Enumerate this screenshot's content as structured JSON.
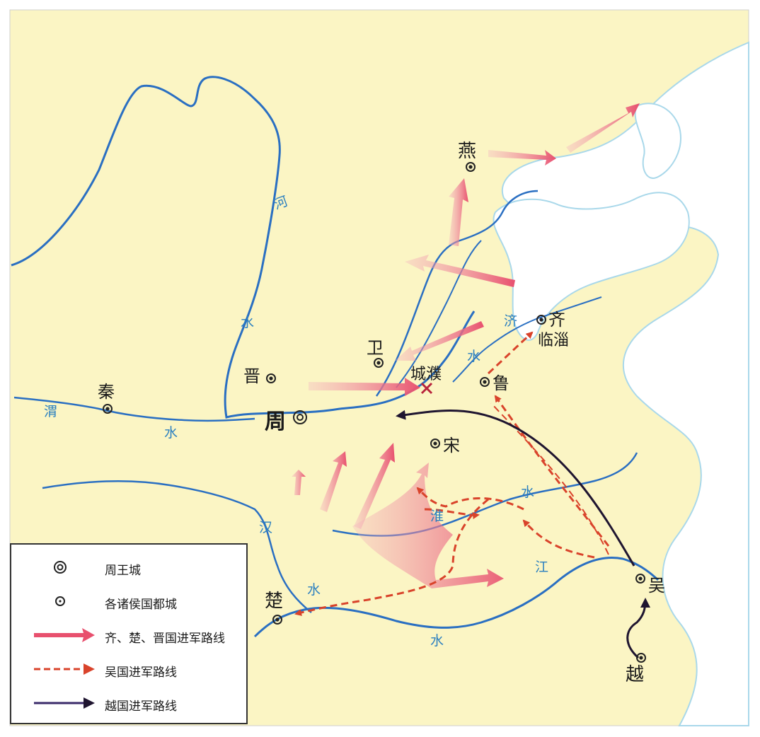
{
  "places": {
    "zhou": "周",
    "yan": "燕",
    "qi": "齐",
    "linzi": "临淄",
    "wei": "卫",
    "chengpu": "城濮",
    "lu": "鲁",
    "jin": "晋",
    "qin": "秦",
    "song": "宋",
    "chu": "楚",
    "wu": "吴",
    "yue": "越"
  },
  "rivers": {
    "he_1": "河",
    "he_2": "水",
    "wei_1": "渭",
    "wei_2": "水",
    "ji_1": "济",
    "ji_2": "水",
    "huai_1": "淮",
    "huai_2": "水",
    "han_1": "汉",
    "han_2": "水",
    "jiang_1": "江",
    "jiang_2": "水"
  },
  "legend": {
    "items": [
      {
        "symbol": "royal-city",
        "label": "周王城"
      },
      {
        "symbol": "state-capital",
        "label": "各诸侯国都城"
      },
      {
        "symbol": "pink-arrow",
        "label": "齐、楚、晋国进军路线"
      },
      {
        "symbol": "dashed-arrow",
        "label": "吴国进军路线"
      },
      {
        "symbol": "dark-arrow",
        "label": "越国进军路线"
      }
    ]
  },
  "colors": {
    "land": "#fbf5c4",
    "sea": "#ffffff",
    "river": "#2a6fc2",
    "coast": "#a9d8ea",
    "qi_chu_jin_route": "#e8506e",
    "wu_route": "#d9432b",
    "yue_route": "#1f1530"
  }
}
